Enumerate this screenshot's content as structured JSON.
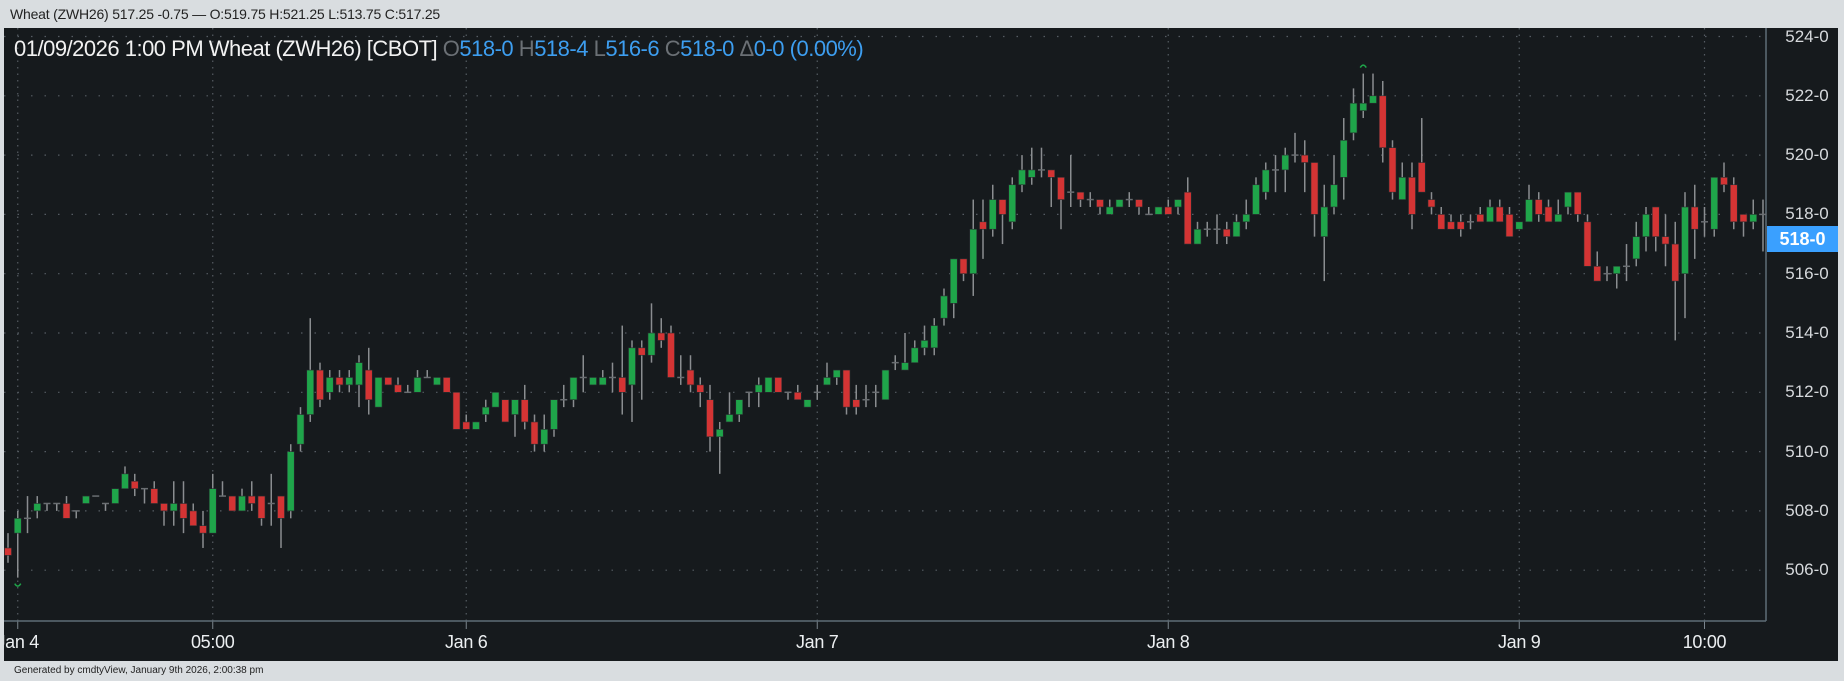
{
  "window": {
    "title": "Wheat (ZWH26) 517.25 -0.75 — O:519.75 H:521.25 L:513.75 C:517.25"
  },
  "header": {
    "datetime": "01/09/2026  1:00 PM",
    "symbol": "Wheat (ZWH26) [CBOT]",
    "open_label": "O",
    "open_value": "518-0",
    "high_label": "H",
    "high_value": "518-4",
    "low_label": "L",
    "low_value": "516-6",
    "close_label": "C",
    "close_value": "518-0",
    "change_label": "Δ",
    "change_value": "0-0 (0.00%)"
  },
  "footer": {
    "text": "Generated by cmdtyView, January 9th 2026, 2:00:38 pm"
  },
  "colors": {
    "up": "#1fa54a",
    "down": "#d43434",
    "wick": "#8a8d90",
    "accent": "#3aa0ff",
    "background": "#161a1d"
  },
  "chart_data": {
    "type": "candlestick",
    "interval": "30 min",
    "y_axis": {
      "min": 504.5,
      "max": 524.25,
      "ticks": [
        "524-0",
        "522-0",
        "520-0",
        "518-0",
        "516-0",
        "514-0",
        "512-0",
        "510-0",
        "508-0",
        "506-0"
      ],
      "tick_values": [
        524,
        522,
        520,
        518,
        516,
        514,
        512,
        510,
        508,
        506
      ]
    },
    "last_price_label": "518-0",
    "last_price": 518,
    "x_ticks": [
      {
        "label": "Jan 4",
        "bar": 1
      },
      {
        "label": "05:00",
        "bar": 21
      },
      {
        "label": "Jan 6",
        "bar": 47
      },
      {
        "label": "Jan 7",
        "bar": 83
      },
      {
        "label": "Jan 8",
        "bar": 119
      },
      {
        "label": "Jan 9",
        "bar": 155
      },
      {
        "label": "10:00",
        "bar": 174
      }
    ],
    "grid": true,
    "markers": [
      {
        "bar": 1,
        "type": "low"
      },
      {
        "bar": 139,
        "type": "high"
      }
    ],
    "ohlc": [
      [
        506.75,
        507.25,
        506.25,
        506.5
      ],
      [
        507.25,
        508.0,
        505.75,
        507.75
      ],
      [
        507.75,
        508.5,
        507.25,
        507.75
      ],
      [
        508.0,
        508.5,
        507.75,
        508.25
      ],
      [
        508.25,
        508.25,
        508.0,
        508.25
      ],
      [
        508.25,
        508.25,
        508.0,
        508.25
      ],
      [
        508.25,
        508.5,
        507.75,
        507.75
      ],
      [
        508.0,
        508.0,
        507.75,
        508.0
      ],
      [
        508.25,
        508.5,
        508.25,
        508.5
      ],
      [
        508.5,
        508.5,
        508.5,
        508.5
      ],
      [
        508.25,
        508.25,
        508.0,
        508.25
      ],
      [
        508.25,
        508.75,
        508.25,
        508.75
      ],
      [
        508.75,
        509.5,
        508.75,
        509.25
      ],
      [
        509.0,
        509.25,
        508.5,
        508.75
      ],
      [
        508.75,
        508.75,
        508.25,
        508.75
      ],
      [
        508.75,
        509.0,
        508.25,
        508.25
      ],
      [
        508.25,
        508.25,
        507.5,
        508.0
      ],
      [
        508.0,
        509.0,
        507.5,
        508.25
      ],
      [
        508.25,
        509.0,
        507.25,
        507.75
      ],
      [
        508.0,
        508.25,
        507.5,
        507.5
      ],
      [
        507.5,
        508.0,
        506.75,
        507.25
      ],
      [
        507.25,
        509.25,
        507.25,
        508.75
      ],
      [
        508.5,
        509.0,
        508.5,
        508.5
      ],
      [
        508.5,
        508.5,
        508.0,
        508.0
      ],
      [
        508.0,
        508.75,
        508.0,
        508.5
      ],
      [
        508.5,
        509.0,
        508.0,
        508.25
      ],
      [
        508.5,
        508.5,
        507.5,
        507.75
      ],
      [
        508.25,
        509.25,
        507.5,
        508.25
      ],
      [
        508.5,
        508.5,
        506.75,
        507.75
      ],
      [
        508.0,
        510.25,
        507.75,
        510.0
      ],
      [
        510.25,
        511.5,
        510.0,
        511.25
      ],
      [
        511.25,
        514.5,
        511.0,
        512.75
      ],
      [
        512.75,
        513.0,
        511.5,
        511.75
      ],
      [
        512.0,
        512.75,
        511.75,
        512.5
      ],
      [
        512.5,
        512.75,
        512.0,
        512.25
      ],
      [
        512.25,
        512.75,
        512.0,
        512.5
      ],
      [
        512.25,
        513.25,
        511.5,
        513.0
      ],
      [
        512.75,
        513.5,
        511.25,
        511.75
      ],
      [
        511.5,
        512.5,
        511.5,
        512.5
      ],
      [
        512.5,
        512.5,
        512.25,
        512.25
      ],
      [
        512.25,
        512.5,
        512.0,
        512.0
      ],
      [
        512.0,
        512.25,
        512.0,
        512.0
      ],
      [
        512.0,
        512.75,
        512.0,
        512.5
      ],
      [
        512.5,
        512.75,
        512.5,
        512.5
      ],
      [
        512.25,
        512.5,
        512.25,
        512.5
      ],
      [
        512.5,
        512.5,
        512.0,
        512.0
      ],
      [
        512.0,
        512.0,
        510.75,
        510.75
      ],
      [
        511.0,
        511.25,
        510.75,
        510.75
      ],
      [
        510.75,
        511.0,
        510.75,
        511.0
      ],
      [
        511.25,
        511.75,
        511.0,
        511.5
      ],
      [
        511.5,
        512.0,
        511.5,
        512.0
      ],
      [
        511.75,
        511.75,
        511.0,
        511.0
      ],
      [
        511.25,
        511.75,
        510.5,
        511.75
      ],
      [
        511.75,
        512.25,
        510.75,
        511.0
      ],
      [
        511.0,
        511.25,
        510.0,
        510.25
      ],
      [
        510.25,
        511.25,
        510.0,
        510.75
      ],
      [
        510.75,
        511.75,
        510.5,
        511.75
      ],
      [
        511.75,
        512.25,
        511.5,
        511.75
      ],
      [
        511.75,
        512.5,
        511.5,
        512.5
      ],
      [
        512.5,
        513.25,
        512.0,
        512.5
      ],
      [
        512.25,
        512.5,
        512.25,
        512.5
      ],
      [
        512.25,
        512.75,
        512.25,
        512.5
      ],
      [
        512.5,
        513.0,
        512.0,
        512.5
      ],
      [
        512.5,
        514.25,
        511.25,
        512.0
      ],
      [
        512.25,
        513.75,
        511.0,
        513.5
      ],
      [
        513.5,
        513.75,
        511.75,
        513.25
      ],
      [
        513.25,
        515.0,
        513.0,
        514.0
      ],
      [
        514.0,
        514.5,
        513.5,
        513.75
      ],
      [
        514.0,
        514.25,
        512.5,
        512.5
      ],
      [
        512.5,
        513.25,
        512.25,
        512.5
      ],
      [
        512.75,
        513.25,
        512.0,
        512.25
      ],
      [
        512.25,
        512.5,
        511.5,
        512.0
      ],
      [
        511.75,
        512.25,
        510.0,
        510.5
      ],
      [
        510.5,
        511.0,
        509.25,
        510.75
      ],
      [
        511.0,
        512.0,
        511.0,
        511.25
      ],
      [
        511.25,
        511.75,
        511.0,
        511.75
      ],
      [
        512.0,
        512.0,
        511.5,
        512.0
      ],
      [
        512.0,
        512.5,
        511.5,
        512.25
      ],
      [
        512.0,
        512.5,
        512.0,
        512.5
      ],
      [
        512.5,
        512.5,
        512.0,
        512.0
      ],
      [
        512.0,
        512.0,
        511.75,
        512.0
      ],
      [
        512.0,
        512.25,
        511.75,
        511.75
      ],
      [
        511.5,
        511.75,
        511.5,
        511.75
      ],
      [
        512.0,
        512.25,
        511.75,
        512.0
      ],
      [
        512.25,
        513.0,
        512.25,
        512.5
      ],
      [
        512.5,
        512.75,
        512.25,
        512.75
      ],
      [
        512.75,
        512.75,
        511.25,
        511.5
      ],
      [
        511.75,
        512.25,
        511.25,
        511.5
      ],
      [
        511.75,
        512.25,
        511.5,
        511.75
      ],
      [
        512.0,
        512.25,
        511.5,
        512.0
      ],
      [
        511.75,
        512.75,
        511.75,
        512.75
      ],
      [
        513.0,
        513.25,
        512.75,
        513.0
      ],
      [
        512.75,
        514.0,
        512.75,
        513.0
      ],
      [
        513.0,
        513.75,
        513.0,
        513.5
      ],
      [
        513.5,
        514.25,
        513.25,
        513.75
      ],
      [
        513.5,
        514.5,
        513.25,
        514.25
      ],
      [
        514.5,
        515.5,
        514.25,
        515.25
      ],
      [
        515.0,
        516.5,
        514.5,
        516.5
      ],
      [
        516.5,
        516.5,
        515.75,
        516.0
      ],
      [
        516.0,
        518.5,
        515.25,
        517.5
      ],
      [
        517.75,
        518.5,
        516.5,
        517.5
      ],
      [
        517.5,
        519.0,
        517.25,
        518.5
      ],
      [
        518.5,
        518.5,
        517.0,
        518.0
      ],
      [
        517.75,
        519.25,
        517.5,
        519.0
      ],
      [
        519.0,
        520.0,
        518.75,
        519.5
      ],
      [
        519.25,
        520.25,
        519.0,
        519.5
      ],
      [
        519.5,
        520.25,
        519.25,
        519.5
      ],
      [
        519.5,
        519.5,
        518.25,
        519.25
      ],
      [
        519.25,
        519.25,
        517.5,
        518.5
      ],
      [
        518.75,
        520.0,
        518.25,
        518.75
      ],
      [
        518.75,
        518.75,
        518.25,
        518.5
      ],
      [
        518.5,
        518.75,
        518.25,
        518.5
      ],
      [
        518.5,
        518.5,
        518.0,
        518.25
      ],
      [
        518.0,
        518.5,
        518.0,
        518.25
      ],
      [
        518.25,
        518.5,
        518.25,
        518.5
      ],
      [
        518.5,
        518.75,
        518.25,
        518.5
      ],
      [
        518.5,
        518.5,
        518.0,
        518.25
      ],
      [
        518.0,
        518.25,
        518.0,
        518.0
      ],
      [
        518.0,
        518.25,
        518.0,
        518.25
      ],
      [
        518.25,
        518.5,
        518.0,
        518.0
      ],
      [
        518.25,
        518.5,
        518.0,
        518.5
      ],
      [
        518.75,
        519.25,
        517.0,
        517.0
      ],
      [
        517.0,
        517.75,
        517.0,
        517.5
      ],
      [
        517.5,
        517.75,
        517.25,
        517.5
      ],
      [
        517.5,
        518.0,
        517.0,
        517.5
      ],
      [
        517.5,
        517.75,
        517.0,
        517.25
      ],
      [
        517.25,
        518.0,
        517.25,
        517.75
      ],
      [
        517.75,
        518.5,
        517.5,
        518.0
      ],
      [
        518.0,
        519.25,
        518.0,
        519.0
      ],
      [
        518.75,
        519.75,
        518.5,
        519.5
      ],
      [
        519.5,
        520.0,
        518.75,
        519.5
      ],
      [
        519.5,
        520.25,
        518.75,
        520.0
      ],
      [
        520.0,
        520.75,
        519.75,
        520.0
      ],
      [
        520.0,
        520.5,
        518.75,
        519.75
      ],
      [
        519.75,
        519.75,
        517.25,
        518.0
      ],
      [
        517.25,
        519.0,
        515.75,
        518.25
      ],
      [
        518.25,
        520.0,
        518.0,
        519.0
      ],
      [
        519.25,
        521.25,
        518.5,
        520.5
      ],
      [
        520.75,
        522.25,
        520.5,
        521.75
      ],
      [
        521.5,
        522.75,
        521.25,
        521.75
      ],
      [
        521.75,
        522.75,
        521.75,
        522.0
      ],
      [
        522.0,
        522.5,
        519.75,
        520.25
      ],
      [
        520.25,
        520.5,
        518.5,
        518.75
      ],
      [
        518.5,
        519.75,
        518.5,
        519.25
      ],
      [
        519.25,
        519.75,
        517.5,
        518.0
      ],
      [
        519.75,
        521.25,
        518.75,
        518.75
      ],
      [
        518.5,
        518.75,
        518.0,
        518.25
      ],
      [
        518.0,
        518.25,
        517.5,
        517.5
      ],
      [
        517.75,
        518.0,
        517.5,
        517.5
      ],
      [
        517.75,
        518.0,
        517.25,
        517.5
      ],
      [
        517.75,
        518.0,
        517.5,
        517.75
      ],
      [
        518.0,
        518.25,
        517.75,
        517.75
      ],
      [
        517.75,
        518.5,
        517.75,
        518.25
      ],
      [
        518.25,
        518.5,
        517.75,
        517.75
      ],
      [
        518.0,
        518.25,
        517.25,
        517.25
      ],
      [
        517.5,
        517.75,
        517.5,
        517.75
      ],
      [
        517.75,
        519.0,
        517.75,
        518.5
      ],
      [
        518.5,
        518.75,
        517.75,
        518.0
      ],
      [
        518.25,
        518.5,
        517.75,
        517.75
      ],
      [
        517.75,
        518.5,
        517.75,
        518.0
      ],
      [
        518.25,
        518.75,
        518.0,
        518.75
      ],
      [
        518.75,
        518.75,
        517.75,
        518.0
      ],
      [
        517.75,
        518.0,
        516.25,
        516.25
      ],
      [
        516.25,
        516.75,
        515.75,
        515.75
      ],
      [
        516.0,
        516.25,
        515.75,
        516.0
      ],
      [
        516.0,
        516.25,
        515.5,
        516.25
      ],
      [
        516.25,
        517.0,
        515.75,
        516.25
      ],
      [
        516.5,
        517.75,
        516.25,
        517.25
      ],
      [
        517.25,
        518.25,
        516.75,
        518.0
      ],
      [
        518.25,
        518.25,
        516.75,
        517.25
      ],
      [
        517.25,
        518.0,
        516.25,
        517.0
      ],
      [
        517.0,
        517.75,
        513.75,
        515.75
      ],
      [
        516.0,
        518.75,
        514.5,
        518.25
      ],
      [
        518.25,
        519.0,
        516.5,
        517.5
      ],
      [
        517.75,
        518.25,
        517.25,
        517.75
      ],
      [
        517.5,
        519.25,
        517.25,
        519.25
      ],
      [
        519.25,
        519.75,
        518.75,
        519.0
      ],
      [
        519.0,
        519.25,
        517.5,
        517.75
      ],
      [
        518.0,
        518.0,
        517.25,
        517.75
      ],
      [
        517.75,
        518.5,
        517.5,
        518.0
      ],
      [
        518.0,
        518.5,
        516.75,
        518.0
      ]
    ]
  }
}
